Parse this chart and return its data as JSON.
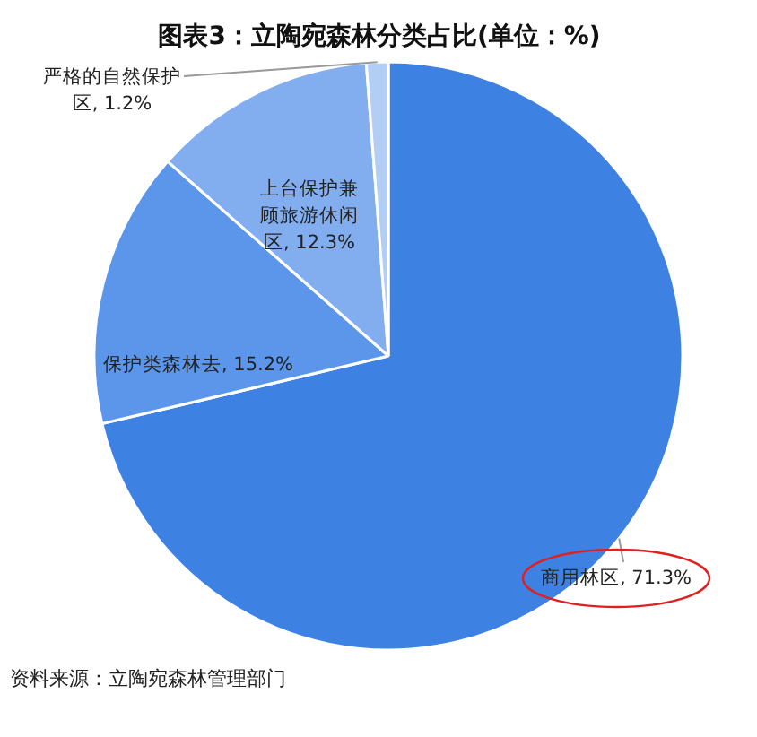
{
  "chart_data": {
    "type": "pie",
    "title": "图表3：立陶宛森林分类占比(单位：%)",
    "categories": [
      "商用林区",
      "保护类森林去",
      "上台保护兼顾旅游休闲区",
      "严格的自然保护区"
    ],
    "values": [
      71.3,
      15.2,
      12.3,
      1.2
    ],
    "value_labels": [
      "71.3%",
      "15.2%",
      "12.3%",
      "1.2%"
    ],
    "colors": [
      "#3d82e3",
      "#5b96ea",
      "#82aef0",
      "#b3cef5"
    ],
    "data_labels": true,
    "annotations": [
      "资料来源：立陶宛森林管理部门"
    ]
  }
}
